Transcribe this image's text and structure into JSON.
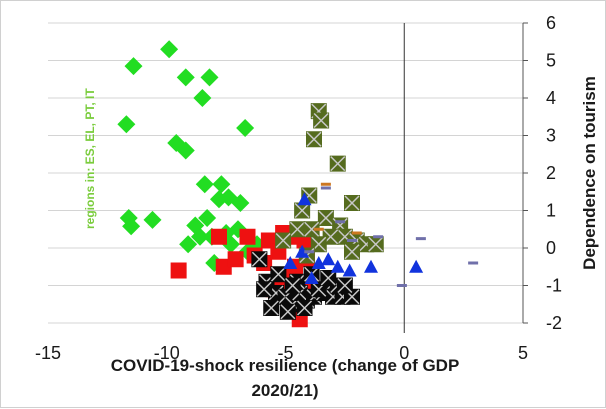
{
  "chart_data": {
    "type": "scatter",
    "title": "",
    "xlabel": "COVID-19-shock resilience (change of GDP 2020/21)",
    "xlabel_lines": [
      "COVID-19-shock resilience (change of GDP",
      "2020/21)"
    ],
    "ylabel": "Dependence on tourism",
    "annotation": "regions in: ES, EL, PT, IT",
    "xlim": [
      -15,
      5
    ],
    "ylim": [
      -2,
      6
    ],
    "x_ticks": [
      -15,
      -10,
      -5,
      0,
      5
    ],
    "y_ticks": [
      -2,
      -1,
      0,
      1,
      2,
      3,
      4,
      5,
      6
    ],
    "x_tick_labels": [
      "-15",
      "-10",
      "-5",
      "0",
      "5"
    ],
    "y_tick_labels": [
      "-2",
      "-1",
      "0",
      "1",
      "2",
      "3",
      "4",
      "5",
      "6"
    ],
    "grid": "horizontal",
    "legend": "none",
    "vertical_reference_line_x": 0,
    "series": [
      {
        "marker": "diamond",
        "color": "#22dd22",
        "points": [
          [
            -9.9,
            5.3
          ],
          [
            -11.4,
            4.85
          ],
          [
            -9.2,
            4.55
          ],
          [
            -8.2,
            4.55
          ],
          [
            -8.5,
            4.0
          ],
          [
            -11.7,
            3.3
          ],
          [
            -6.7,
            3.2
          ],
          [
            -9.6,
            2.8
          ],
          [
            -9.2,
            2.6
          ],
          [
            -8.4,
            1.7
          ],
          [
            -7.7,
            1.7
          ],
          [
            -7.4,
            1.35
          ],
          [
            -7.8,
            1.3
          ],
          [
            -6.9,
            1.2
          ],
          [
            -11.6,
            0.8
          ],
          [
            -10.6,
            0.75
          ],
          [
            -11.5,
            0.58
          ],
          [
            -8.8,
            0.6
          ],
          [
            -8.3,
            0.8
          ],
          [
            -9.1,
            0.1
          ],
          [
            -8.1,
            0.3
          ],
          [
            -7.5,
            0.4
          ],
          [
            -7.3,
            0.1
          ],
          [
            -8.0,
            -0.4
          ],
          [
            -6.6,
            -0.1
          ],
          [
            -6.2,
            0.1
          ],
          [
            -7.0,
            0.5
          ],
          [
            -8.6,
            0.3
          ]
        ]
      },
      {
        "marker": "square",
        "color": "#ee1111",
        "points": [
          [
            -9.5,
            -0.6
          ],
          [
            -7.8,
            0.3
          ],
          [
            -7.6,
            -0.5
          ],
          [
            -7.1,
            -0.3
          ],
          [
            -6.6,
            0.3
          ],
          [
            -6.3,
            -0.2
          ],
          [
            -5.7,
            0.2
          ],
          [
            -5.3,
            -0.1
          ],
          [
            -5.1,
            0.4
          ],
          [
            -4.8,
            0.3
          ],
          [
            -4.5,
            0.35
          ],
          [
            -4.2,
            0.2
          ],
          [
            -4.7,
            -0.7
          ],
          [
            -5.0,
            -0.9
          ],
          [
            -5.5,
            -1.1
          ],
          [
            -3.9,
            -1.0
          ],
          [
            -4.4,
            -1.9
          ],
          [
            -4.1,
            -0.3
          ],
          [
            -5.9,
            -0.4
          ],
          [
            -4.6,
            -0.5
          ]
        ]
      },
      {
        "marker": "square-x",
        "color": "#556b1e",
        "points": [
          [
            -3.6,
            3.65
          ],
          [
            -3.5,
            3.4
          ],
          [
            -3.8,
            2.9
          ],
          [
            -2.8,
            2.25
          ],
          [
            -2.2,
            1.2
          ],
          [
            -4.0,
            1.4
          ],
          [
            -4.3,
            1.0
          ],
          [
            -3.3,
            0.8
          ],
          [
            -2.7,
            0.6
          ],
          [
            -2.5,
            0.3
          ],
          [
            -2.0,
            0.2
          ],
          [
            -1.6,
            0.1
          ],
          [
            -1.2,
            0.1
          ],
          [
            -3.1,
            0.3
          ],
          [
            -3.6,
            0.1
          ],
          [
            -4.1,
            -0.2
          ],
          [
            -4.5,
            0.5
          ],
          [
            -5.1,
            0.2
          ],
          [
            -2.2,
            -0.1
          ],
          [
            -3.9,
            0.5
          ]
        ]
      },
      {
        "marker": "square-x",
        "color": "#0a0a0a",
        "points": [
          [
            -5.8,
            -0.9
          ],
          [
            -5.4,
            -1.2
          ],
          [
            -5.0,
            -1.3
          ],
          [
            -4.7,
            -1.5
          ],
          [
            -4.4,
            -1.2
          ],
          [
            -4.1,
            -1.4
          ],
          [
            -3.8,
            -1.3
          ],
          [
            -3.4,
            -1.2
          ],
          [
            -3.0,
            -1.3
          ],
          [
            -2.6,
            -1.3
          ],
          [
            -2.2,
            -1.3
          ],
          [
            -5.6,
            -1.6
          ],
          [
            -4.9,
            -1.7
          ],
          [
            -4.2,
            -1.6
          ],
          [
            -3.6,
            -1.1
          ],
          [
            -2.8,
            -1.0
          ],
          [
            -5.3,
            -0.7
          ],
          [
            -4.5,
            -0.9
          ],
          [
            -3.2,
            -0.8
          ],
          [
            -6.1,
            -0.3
          ],
          [
            -5.9,
            -1.1
          ],
          [
            -4.7,
            -1.0
          ],
          [
            -3.9,
            -0.7
          ],
          [
            -2.5,
            -1.0
          ]
        ]
      },
      {
        "marker": "triangle",
        "color": "#1133dd",
        "points": [
          [
            -4.2,
            1.3
          ],
          [
            -4.8,
            -0.4
          ],
          [
            -3.6,
            -0.4
          ],
          [
            -3.2,
            -0.3
          ],
          [
            -2.8,
            -0.5
          ],
          [
            -2.3,
            -0.6
          ],
          [
            -1.4,
            -0.5
          ],
          [
            -3.9,
            -0.8
          ],
          [
            0.5,
            -0.5
          ],
          [
            -4.3,
            -0.1
          ]
        ]
      },
      {
        "marker": "dash",
        "color": "#7070aa",
        "points": [
          [
            -3.3,
            1.6
          ],
          [
            -2.7,
            0.7
          ],
          [
            -2.2,
            0.2
          ],
          [
            -1.1,
            0.3
          ],
          [
            0.7,
            0.25
          ],
          [
            2.9,
            -0.4
          ],
          [
            -0.1,
            -1.0
          ],
          [
            -4.0,
            -0.1
          ]
        ]
      },
      {
        "marker": "dash",
        "color": "#cc7722",
        "points": [
          [
            -3.3,
            1.7
          ],
          [
            -3.6,
            0.5
          ],
          [
            -2.0,
            0.4
          ]
        ]
      }
    ]
  }
}
